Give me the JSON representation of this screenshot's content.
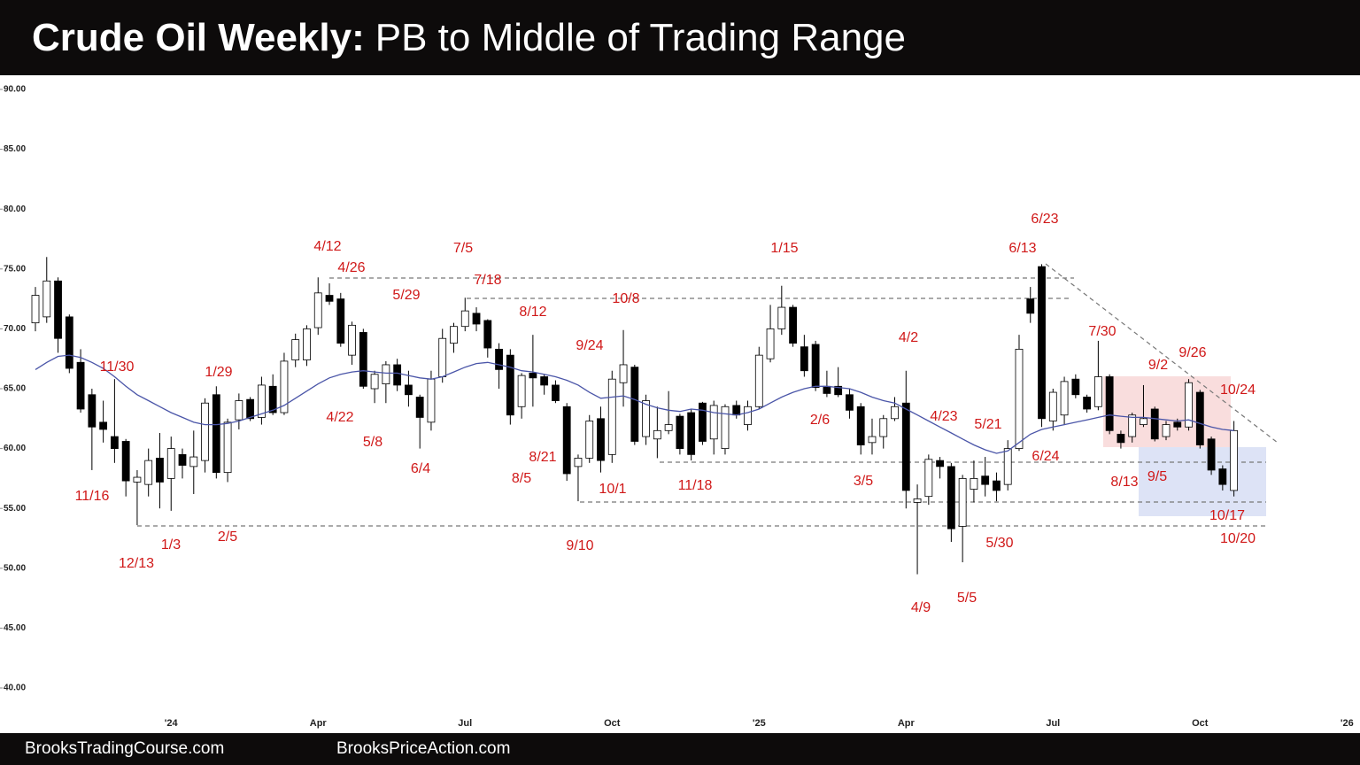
{
  "chart_data": {
    "type": "candlestick",
    "title": "Crude Oil Weekly:",
    "subtitle": "PB to Middle of Trading Range",
    "footer": [
      "BrooksTradingCourse.com",
      "BrooksPriceAction.com"
    ],
    "categories": [
      null,
      null,
      null,
      null,
      null,
      null,
      null,
      null,
      null,
      null,
      null,
      null,
      "'24",
      null,
      null,
      null,
      null,
      null,
      null,
      null,
      null,
      null,
      null,
      null,
      null,
      "Apr",
      null,
      null,
      null,
      null,
      null,
      null,
      null,
      null,
      null,
      null,
      null,
      null,
      "Jul",
      null,
      null,
      null,
      null,
      null,
      null,
      null,
      null,
      null,
      null,
      null,
      null,
      "Oct",
      null,
      null,
      null,
      null,
      null,
      null,
      null,
      null,
      null,
      null,
      null,
      null,
      "'25",
      null,
      null,
      null,
      null,
      null,
      null,
      null,
      null,
      null,
      null,
      null,
      null,
      "Apr",
      null,
      null,
      null,
      null,
      null,
      null,
      null,
      null,
      null,
      null,
      null,
      null,
      "Jul",
      null,
      null,
      null,
      null,
      null,
      null,
      null,
      null,
      null,
      null,
      null,
      null,
      "Oct",
      null,
      null,
      null,
      null,
      null,
      null,
      null,
      null,
      null,
      null,
      null,
      null,
      "'26"
    ],
    "open": [
      70.5,
      71,
      74,
      71,
      67.2,
      64.5,
      62.2,
      61,
      60.6,
      57.2,
      57,
      59.2,
      57.5,
      59.5,
      58.5,
      59,
      64.5,
      58,
      62.4,
      64.1,
      62.6,
      65.2,
      63,
      67.4,
      67.4,
      70.1,
      72.8,
      72.5,
      67.8,
      69.7,
      65,
      65.4,
      67,
      65.3,
      64.3,
      62.2,
      66,
      68.8,
      70.2,
      71.3,
      70.7,
      68.3,
      67.8,
      63.5,
      66.3,
      66,
      65.3,
      63.5,
      58.5,
      59.2,
      62.5,
      59.5,
      65.5,
      66.8,
      61,
      60.8,
      61.5,
      62.7,
      63,
      63.8,
      60.8,
      60,
      63.6,
      62,
      63.5,
      67.5,
      70,
      71.8,
      68.5,
      68.7,
      65.2,
      65.2,
      64.5,
      63.5,
      60.5,
      61,
      62.5,
      63.8,
      55.5,
      56,
      59,
      58.5,
      53.5,
      56.6,
      57.7,
      57.3,
      57,
      60,
      72.5,
      75.2,
      62.3,
      62.8,
      65.8,
      64.3,
      63.5,
      66,
      61.2,
      61,
      62,
      63.3,
      61,
      62.2,
      61.8,
      64.7,
      60.8,
      58.3,
      56.5,
      null,
      null,
      null,
      null,
      null,
      null,
      null,
      null,
      null,
      null
    ],
    "high": [
      73.5,
      76,
      74.3,
      71.2,
      68.3,
      65,
      64,
      65.8,
      60.8,
      58.2,
      60,
      61.3,
      61,
      60,
      61.5,
      64.2,
      65.2,
      62.5,
      64.6,
      64.3,
      66,
      66.2,
      68,
      69.6,
      70.3,
      74.3,
      73.8,
      73,
      70.6,
      70,
      66.5,
      67.3,
      67.5,
      66.5,
      64.5,
      66.5,
      70,
      70.5,
      72.6,
      71.8,
      70.8,
      68.8,
      68.3,
      66.3,
      69.5,
      66.2,
      65.7,
      63.8,
      59.5,
      62.8,
      63.5,
      66.5,
      69.9,
      67,
      64.5,
      63.5,
      64.8,
      62.9,
      63.3,
      63.9,
      64,
      63.7,
      64,
      64,
      68.5,
      72,
      73.6,
      72,
      69.5,
      69,
      66.5,
      66.8,
      65,
      63.8,
      62.5,
      62.8,
      64.3,
      66.5,
      57,
      59.5,
      59.3,
      58.8,
      57.8,
      59,
      59.3,
      58,
      60.7,
      69.5,
      73.5,
      75.4,
      65,
      66,
      66.2,
      64.5,
      69,
      66.2,
      61.5,
      63,
      65.3,
      63.5,
      62.3,
      62.5,
      65.8,
      64.9,
      61,
      58.6,
      62.3,
      null,
      null,
      null,
      null,
      null,
      null,
      null,
      null,
      null,
      null
    ],
    "low": [
      69.8,
      70.5,
      68,
      66.3,
      63,
      58.2,
      60.5,
      58.8,
      56,
      53.6,
      56,
      55,
      54.8,
      57.5,
      56.2,
      58,
      57.5,
      57.2,
      61.6,
      62.3,
      62,
      62.8,
      62.8,
      66.8,
      66.9,
      69.5,
      72,
      68.5,
      67,
      65,
      63.8,
      63.8,
      64.8,
      63.5,
      60,
      61.5,
      65.5,
      68,
      69.8,
      69.8,
      67.6,
      65,
      62,
      62.5,
      63.5,
      64.5,
      63.8,
      57.3,
      55.6,
      58.8,
      58,
      58.8,
      63.5,
      60.3,
      60.3,
      59.2,
      61.2,
      59.5,
      59,
      60.3,
      59.5,
      59.5,
      62.5,
      61.5,
      63.3,
      67.2,
      69.5,
      68.5,
      66,
      64.8,
      64.3,
      64.3,
      62.5,
      59.5,
      59.5,
      60,
      62.3,
      55,
      49.5,
      55.3,
      57.5,
      52.2,
      50.5,
      55.5,
      56,
      55.6,
      56.5,
      59.8,
      70.5,
      61.8,
      61.5,
      62,
      64.2,
      63,
      63.2,
      61.2,
      60,
      60.5,
      61.8,
      60.6,
      60.7,
      61.5,
      61.5,
      60,
      57.8,
      56.5,
      56,
      null,
      null,
      null,
      null,
      null,
      null,
      null,
      null,
      null,
      null
    ],
    "close": [
      72.8,
      74,
      69.2,
      66.7,
      63.3,
      61.8,
      61.6,
      60,
      57.3,
      57.6,
      59,
      57.2,
      60,
      58.6,
      59.3,
      63.8,
      58,
      62.2,
      64,
      62.5,
      65.3,
      63,
      67.3,
      69.1,
      70,
      73,
      72.3,
      68.8,
      70.3,
      65.2,
      66.2,
      67,
      65.3,
      64.5,
      62.6,
      65.8,
      69.2,
      70.2,
      71.5,
      70.4,
      68.4,
      66.6,
      62.8,
      66.1,
      65.9,
      65.3,
      64,
      57.9,
      59.2,
      62.3,
      59,
      65.8,
      67,
      60.6,
      64,
      61.5,
      62,
      60,
      59.5,
      60.6,
      63.6,
      63.5,
      62.8,
      63.5,
      67.8,
      70,
      71.8,
      68.8,
      66.5,
      65.1,
      64.6,
      64.5,
      63.2,
      60.3,
      61,
      62.5,
      63.5,
      56.5,
      55.8,
      59.1,
      58.5,
      53.3,
      57.5,
      57.5,
      57,
      56.5,
      60,
      68.3,
      71.3,
      62.5,
      64.7,
      65.6,
      64.5,
      63.3,
      66,
      61.5,
      60.5,
      62.8,
      62.5,
      60.8,
      62,
      61.8,
      65.5,
      60.3,
      58.2,
      57,
      61.5,
      null,
      null,
      null,
      null,
      null,
      null,
      null,
      null,
      null,
      null
    ],
    "ma": [
      66.6,
      67.2,
      67.7,
      67.8,
      67.6,
      67.2,
      66.7,
      66,
      65.2,
      64.5,
      64,
      63.5,
      63,
      62.6,
      62.2,
      62,
      62,
      62.1,
      62.3,
      62.6,
      62.9,
      63.2,
      63.6,
      64.2,
      64.8,
      65.4,
      65.9,
      66.2,
      66.4,
      66.5,
      66.4,
      66.3,
      66.3,
      66.1,
      65.9,
      65.8,
      66,
      66.4,
      66.8,
      67.1,
      67.2,
      67,
      66.8,
      66.5,
      66.4,
      66.2,
      66,
      65.7,
      65.3,
      64.7,
      64.2,
      64.3,
      64.4,
      64.1,
      63.7,
      63.4,
      63.2,
      63.1,
      63.3,
      63.2,
      63,
      62.9,
      62.8,
      63,
      63.3,
      63.8,
      64.3,
      64.7,
      65,
      65.2,
      65.2,
      65.1,
      65,
      64.7,
      64.3,
      64,
      63.8,
      63.3,
      62.8,
      62.3,
      61.8,
      61.3,
      60.8,
      60.3,
      59.9,
      59.6,
      59.8,
      60.5,
      61.2,
      61.6,
      61.8,
      62,
      62.2,
      62.4,
      62.6,
      62.8,
      62.7,
      62.6,
      62.6,
      62.5,
      62.4,
      62.3,
      62.4,
      62.1,
      61.8,
      61.6,
      61.5,
      null,
      null,
      null,
      null,
      null,
      null,
      null,
      null,
      null,
      null
    ],
    "up_color": "#ffffff",
    "down_color": "#000000",
    "ma_color": "#4a55a8",
    "ylim": [
      38,
      91
    ],
    "yticks": [
      {
        "value": 40,
        "label": "40.00"
      },
      {
        "value": 45,
        "label": "45.00"
      },
      {
        "value": 50,
        "label": "50.00"
      },
      {
        "value": 55,
        "label": "55.00"
      },
      {
        "value": 60,
        "label": "60.00"
      },
      {
        "value": 65,
        "label": "65.00"
      },
      {
        "value": 70,
        "label": "70.00"
      },
      {
        "value": 75,
        "label": "75.00"
      },
      {
        "value": 80,
        "label": "80.00"
      },
      {
        "value": 85,
        "label": "85.00"
      },
      {
        "value": 90,
        "label": "90.00"
      }
    ],
    "annotations": [
      "11/30",
      "1/29",
      "4/12",
      "4/26",
      "5/29",
      "7/5",
      "7/18",
      "8/12",
      "10/8",
      "9/24",
      "1/15",
      "4/2",
      "6/23",
      "6/13",
      "7/30",
      "9/2",
      "9/26",
      "10/24",
      "11/16",
      "12/13",
      "1/3",
      "2/5",
      "4/22",
      "5/8",
      "6/4",
      "8/21",
      "8/5",
      "10/1",
      "9/10",
      "11/18",
      "2/6",
      "3/5",
      "4/23",
      "5/21",
      "6/24",
      "8/13",
      "9/5",
      "10/17",
      "10/20",
      "5/30",
      "4/9",
      "5/5"
    ]
  }
}
